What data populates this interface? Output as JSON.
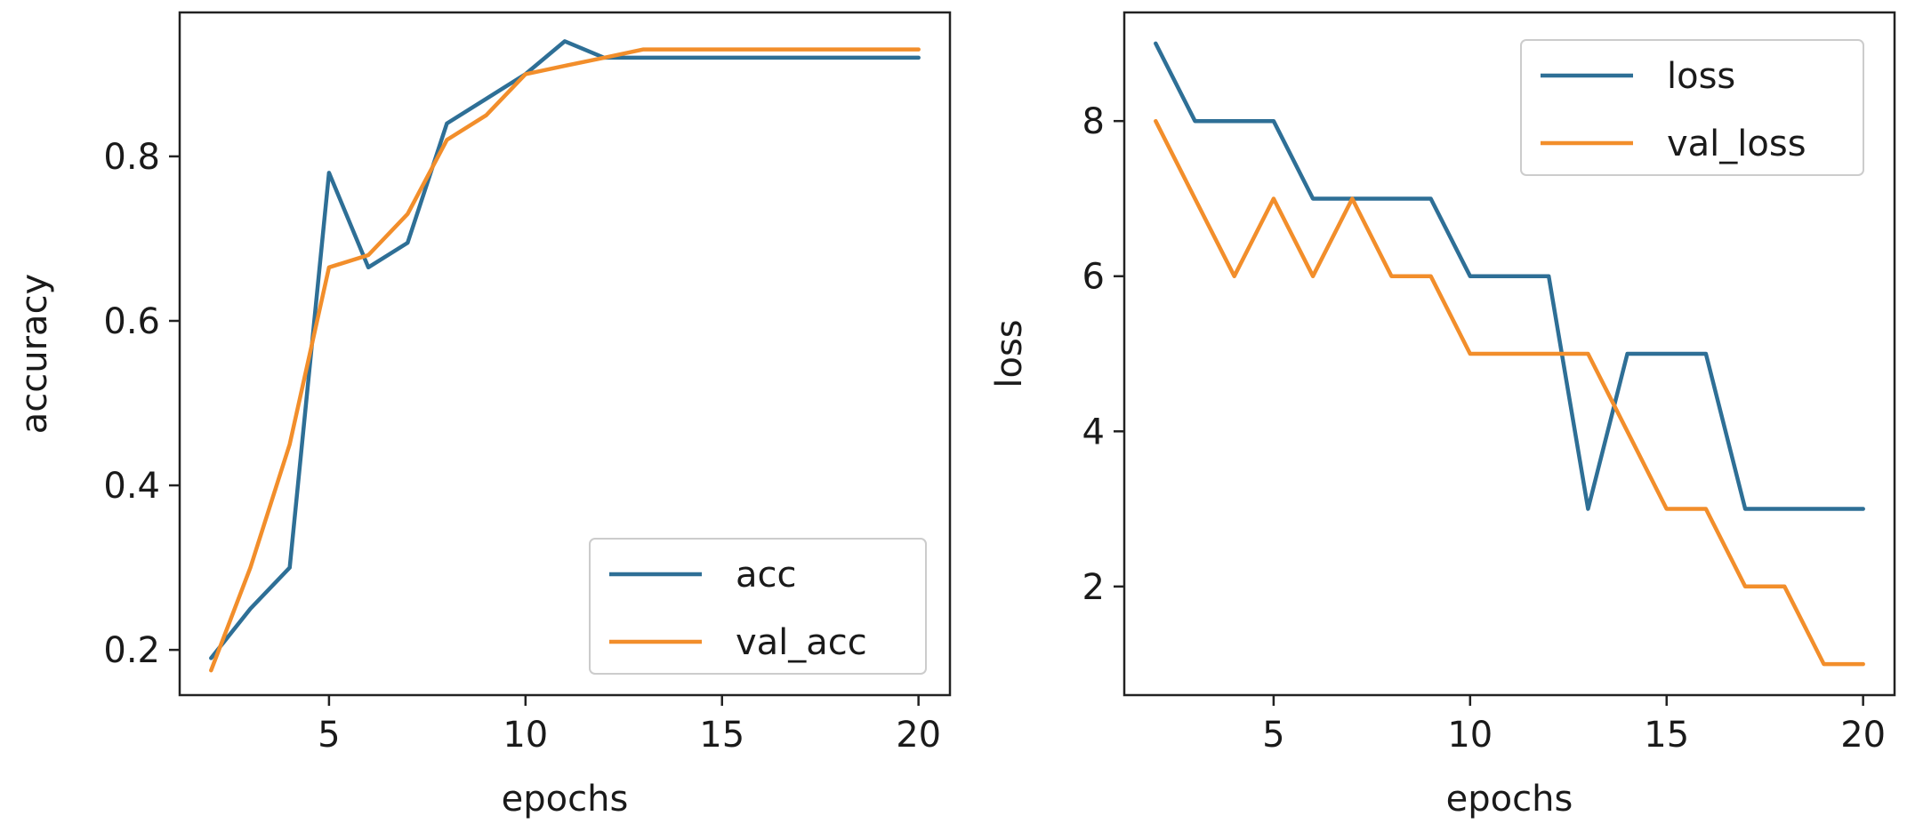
{
  "chart_data": [
    {
      "type": "line",
      "xlabel": "epochs",
      "ylabel": "accuracy",
      "xlim": [
        1.2,
        20.8
      ],
      "ylim": [
        0.145,
        0.975
      ],
      "xticks": [
        5,
        10,
        15,
        20
      ],
      "xtick_labels": [
        "5",
        "10",
        "15",
        "20"
      ],
      "yticks": [
        0.2,
        0.4,
        0.6,
        0.8
      ],
      "ytick_labels": [
        "0.2",
        "0.4",
        "0.6",
        "0.8"
      ],
      "legend_location": "lower right",
      "x": [
        2,
        3,
        4,
        5,
        6,
        7,
        8,
        9,
        10,
        11,
        12,
        13,
        14,
        15,
        16,
        17,
        18,
        19,
        20
      ],
      "series": [
        {
          "name": "acc",
          "color": "#2e6f96",
          "values": [
            0.19,
            0.25,
            0.3,
            0.78,
            0.665,
            0.695,
            0.84,
            0.87,
            0.9,
            0.94,
            0.92,
            0.92,
            0.92,
            0.92,
            0.92,
            0.92,
            0.92,
            0.92,
            0.92
          ]
        },
        {
          "name": "val_acc",
          "color": "#f28e2b",
          "values": [
            0.175,
            0.3,
            0.45,
            0.665,
            0.68,
            0.73,
            0.82,
            0.85,
            0.9,
            0.91,
            0.92,
            0.93,
            0.93,
            0.93,
            0.93,
            0.93,
            0.93,
            0.93,
            0.93
          ]
        }
      ]
    },
    {
      "type": "line",
      "xlabel": "epochs",
      "ylabel": "loss",
      "xlim": [
        1.2,
        20.8
      ],
      "ylim": [
        0.6,
        9.4
      ],
      "xticks": [
        5,
        10,
        15,
        20
      ],
      "xtick_labels": [
        "5",
        "10",
        "15",
        "20"
      ],
      "yticks": [
        2,
        4,
        6,
        8
      ],
      "ytick_labels": [
        "2",
        "4",
        "6",
        "8"
      ],
      "legend_location": "upper right",
      "x": [
        2,
        3,
        4,
        5,
        6,
        7,
        8,
        9,
        10,
        11,
        12,
        13,
        14,
        15,
        16,
        17,
        18,
        19,
        20
      ],
      "series": [
        {
          "name": "loss",
          "color": "#2e6f96",
          "values": [
            9,
            8,
            8,
            8,
            7,
            7,
            7,
            7,
            6,
            6,
            6,
            3,
            5,
            5,
            5,
            3,
            3,
            3,
            3
          ]
        },
        {
          "name": "val_loss",
          "color": "#f28e2b",
          "values": [
            8,
            7,
            6,
            7,
            6,
            7,
            6,
            6,
            5,
            5,
            5,
            5,
            4,
            3,
            3,
            2,
            2,
            1,
            1
          ]
        }
      ]
    }
  ]
}
